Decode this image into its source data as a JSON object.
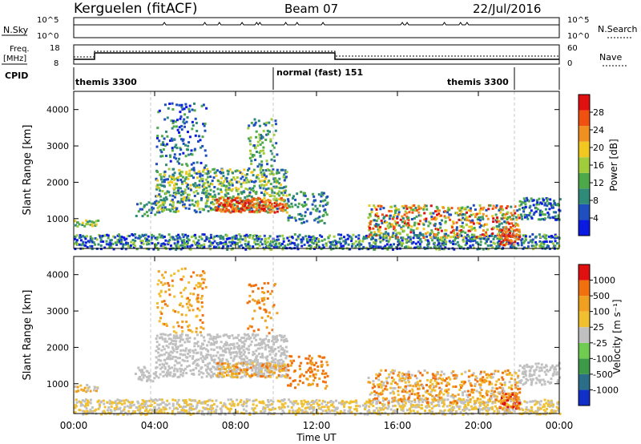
{
  "header": {
    "station": "Kerguelen (fitACF)",
    "beam": "Beam 07",
    "date": "22/Jul/2016"
  },
  "panels": {
    "nsky_label": "N.Sky",
    "nsearch_label": "N.Search",
    "count_ticks": [
      "10^5",
      "10^0"
    ],
    "freq_label": "Freq.",
    "freq_unit": "[MHz]",
    "freq_ticks": [
      "18",
      "8"
    ],
    "nave_label": "Nave",
    "nave_ticks": [
      "60",
      "0"
    ],
    "cpid_label": "CPID",
    "cpid_segments": [
      {
        "label": "themis 3300",
        "start": "00:00",
        "end": "10:00"
      },
      {
        "label": "normal (fast) 151",
        "start": "10:00",
        "end": "22:00"
      },
      {
        "label": "themis 3300",
        "start": "22:00",
        "end": "24:00"
      }
    ]
  },
  "chart_data": [
    {
      "type": "heatmap",
      "name": "power",
      "ylabel": "Slant Range [km]",
      "yticks": [
        "1000",
        "2000",
        "3000",
        "4000"
      ],
      "ylim": [
        180,
        4500
      ],
      "colorbar_label": "Power [dB]",
      "colorbar_ticks": [
        "28",
        "24",
        "20",
        "16",
        "12",
        "8",
        "4"
      ],
      "colorbar_range": [
        0,
        30
      ],
      "colors": [
        "#0a1ae0",
        "#1f4fbf",
        "#2f8a78",
        "#4da84a",
        "#a0cc3c",
        "#f0c820",
        "#f09020",
        "#f05010",
        "#e01010"
      ]
    },
    {
      "type": "heatmap",
      "name": "velocity",
      "ylabel": "Slant Range [km]",
      "yticks": [
        "1000",
        "2000",
        "3000",
        "4000"
      ],
      "ylim": [
        180,
        4500
      ],
      "colorbar_label": "Velocity [m s⁻¹]",
      "colorbar_ticks": [
        "1000",
        "500",
        "100",
        "25",
        "-25",
        "-100",
        "-500",
        "-1000"
      ],
      "colors": [
        "#1030c8",
        "#2a6e88",
        "#3c9a48",
        "#70cc50",
        "#c0c0c0",
        "#f0c030",
        "#f0a020",
        "#f07010",
        "#e01010"
      ]
    }
  ],
  "xaxis": {
    "label": "Time UT",
    "ticks": [
      "00:00",
      "04:00",
      "08:00",
      "12:00",
      "16:00",
      "20:00",
      "00:00"
    ],
    "range_hours": [
      0,
      24
    ],
    "dashed_markers_hours": [
      4,
      10,
      22
    ]
  }
}
